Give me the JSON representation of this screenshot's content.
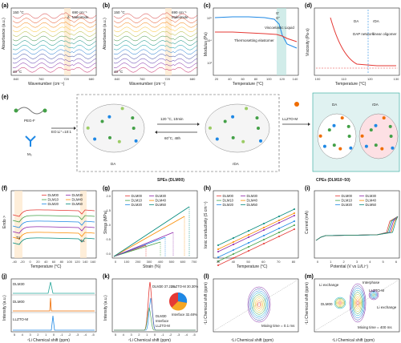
{
  "panels": {
    "a": {
      "label": "(a)",
      "temp_top": "150 °C",
      "temp_bottom": "40 °C",
      "peak_label": "690 cm⁻¹",
      "peak_name": "Maleimide",
      "delta": "δ",
      "mode": "ω",
      "ylabel": "Absorbance (a.u.)",
      "xlabel": "Wavenumber (cm⁻¹)",
      "ticks": [
        "840",
        "760",
        "720",
        "680"
      ]
    },
    "b": {
      "label": "(b)",
      "temp_top": "150 °C",
      "temp_bottom": "40 °C",
      "peak_label": "690 cm⁻¹",
      "peak_name": "Maleimide",
      "delta": "δ",
      "mode": "ω",
      "ylabel": "Absorbance (a.u.)",
      "xlabel": "Wavenumber (cm⁻¹)",
      "ticks": [
        "840",
        "760",
        "720",
        "680"
      ]
    },
    "c": {
      "label": "(c)",
      "ylabel": "Modulus (Pa)",
      "xlabel": "Temperature (°C)",
      "legend": [
        "G'",
        "G''"
      ],
      "text1": "Thermosetting elastomer",
      "text2": "Viscoelastic Liquid",
      "xticks": [
        "20",
        "40",
        "60",
        "80",
        "100",
        "120",
        "140"
      ],
      "yticks": [
        "10⁵",
        "10⁴",
        "10³"
      ]
    },
    "d": {
      "label": "(d)",
      "ylabel": "Viscosity (Pa·s)",
      "xlabel": "Temperature (°C)",
      "da": "DA",
      "rda": "rDA",
      "net": "DAP network",
      "lin": "linear oligomer",
      "xticks": [
        "100",
        "110",
        "120",
        "130"
      ],
      "yticks": [
        "4000",
        "3000",
        "2000",
        "1000",
        "0"
      ]
    },
    "e": {
      "label": "(e)",
      "peg": "PEG-F",
      "eo": "EO:Li⁺=10:1",
      "m3": "M₃",
      "da": "DA",
      "cond1": "120 °C, 10min",
      "cond2": "60°C, 48h",
      "rda": "rDA",
      "mid_caption": "SPEs (DLM00)",
      "llzto": "LLZTO-M",
      "right_caption": "CPEs (DLM10~50)",
      "right_da": "DA",
      "right_rda": "rDA",
      "li": "Li⁺"
    },
    "f": {
      "label": "(f)",
      "ylabel": "Endo >",
      "xlabel": "Temperature (°C)",
      "tg": "Tg",
      "tm": "Tₘ",
      "legend": [
        "DLM00",
        "DLM10",
        "DLM20",
        "DLM30",
        "DLM40",
        "DLM50"
      ],
      "xticks": [
        "-40",
        "-20",
        "0",
        "20",
        "40",
        "60",
        "80",
        "100",
        "120",
        "140",
        "160"
      ]
    },
    "g": {
      "label": "(g)",
      "ylabel": "Stress (MPa)",
      "xlabel": "Strain (%)",
      "legend": [
        "DLM00",
        "DLM10",
        "DLM20",
        "DLM30",
        "DLM40",
        "DLM50"
      ],
      "xticks": [
        "0",
        "100",
        "200",
        "300",
        "400",
        "500",
        "600",
        "700"
      ],
      "yticks": [
        "0.0",
        "0.5",
        "1.0",
        "1.5",
        "2.0"
      ]
    },
    "h": {
      "label": "(h)",
      "ylabel": "Ionic conductivity (S cm⁻¹)",
      "xlabel": "Temperature (°C)",
      "legend": [
        "DLM00",
        "DLM10",
        "DLM20",
        "DLM30",
        "DLM40",
        "DLM50"
      ],
      "xticks": [
        "30",
        "40",
        "50",
        "60",
        "70",
        "80"
      ],
      "yticks": [
        "10⁻³",
        "10⁻⁴"
      ]
    },
    "i": {
      "label": "(i)",
      "ylabel": "Current (mA)",
      "xlabel": "Potential (V vs Li/Li⁺)",
      "legend": [
        "DLM00",
        "DLM10",
        "DLM20",
        "DLM30",
        "DLM40",
        "DLM50"
      ],
      "xticks": [
        "0",
        "1",
        "2",
        "3",
        "4",
        "5",
        "6"
      ],
      "yticks": [
        "0.10",
        "0.08",
        "0.06",
        "0.04",
        "0.02",
        "0.00",
        "-0.02"
      ]
    },
    "j": {
      "label": "(j)",
      "ylabel": "Intensity (a.u.)",
      "xlabel": "⁷Li Chemical shift (ppm)",
      "traces": [
        "DLM30",
        "DLM00",
        "LLZTO-M"
      ],
      "xticks": [
        "5",
        "4",
        "3",
        "2",
        "1",
        "0",
        "-1",
        "-2",
        "-3",
        "-4",
        "-5"
      ]
    },
    "k": {
      "label": "(k)",
      "ylabel": "Intensity (a.u.)",
      "xlabel": "⁷Li Chemical shift (ppm)",
      "pie_dlm": "DLM30 37.22%",
      "pie_llz": "LLZTO-M 30.30%",
      "pie_int": "Interface 32.48%",
      "t1": "DLM30",
      "t2": "Interface",
      "t3": "LLZTO-M",
      "xticks": [
        "5",
        "4",
        "3",
        "2",
        "1",
        "0",
        "-1",
        "-2",
        "-3",
        "-4",
        "-5"
      ]
    },
    "l": {
      "label": "(l)",
      "ylabel": "⁷Li Chemical shift (ppm)",
      "xlabel": "⁷Li Chemical shift (ppm)",
      "mix": "Mixing time = 0.1 ms",
      "xticks": [
        "-1.5",
        "-1.0",
        "-0.5",
        "0.0"
      ],
      "yticks": [
        "0.0",
        "-0.5",
        "-1.0",
        "-1.5"
      ]
    },
    "m": {
      "label": "(m)",
      "ylabel": "⁷Li Chemical shift (ppm)",
      "xlabel": "⁷Li Chemical shift (ppm)",
      "ex1": "Li exchange",
      "ex2": "Li exchange",
      "interphase": "Interphase",
      "llz": "LLZTO-M",
      "dlm": "DLM00",
      "mix": "Mixing time = 400 ms",
      "xticks": [
        "-2.0",
        "-1.5",
        "-1.0",
        "-0.5",
        "0.0"
      ],
      "yticks": [
        "0.0",
        "-0.5",
        "-1.0",
        "-1.5",
        "-2.0"
      ]
    }
  },
  "series_colors": {
    "DLM00": "#e53935",
    "DLM10": "#43a047",
    "DLM20": "#1e88e5",
    "DLM30": "#8e24aa",
    "DLM40": "#fb8c00",
    "DLM50": "#00897b"
  },
  "colors": {
    "blue": "#1e88e5",
    "red": "#e53935",
    "green": "#43a047",
    "purple": "#8e24aa",
    "orange": "#f5a623",
    "teal": "#26a69a",
    "pink": "#f48fb1"
  }
}
